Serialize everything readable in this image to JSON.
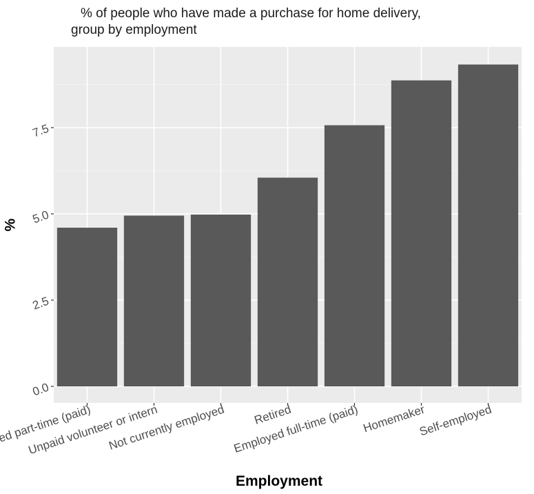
{
  "chart_data": {
    "type": "bar",
    "title": "% of people who have made a purchase for home delivery,",
    "subtitle": "group by employment",
    "xlabel": "Employment",
    "ylabel": "%",
    "categories": [
      "Employed part-time (paid)",
      "Unpaid volunteer or intern",
      "Not currently employed",
      "Retired",
      "Employed full-time (paid)",
      "Homemaker",
      "Self-employed"
    ],
    "values": [
      4.6,
      4.95,
      4.98,
      6.05,
      7.57,
      8.87,
      9.33
    ],
    "ylim": [
      0,
      9.8
    ],
    "yticks": [
      0.0,
      2.5,
      5.0,
      7.5
    ],
    "ytick_labels": [
      "0.0",
      "2.5",
      "5.0",
      "7.5"
    ],
    "grid": true,
    "colors": {
      "bar": "#595959",
      "panel": "#ebebeb",
      "grid_major": "#ffffff",
      "grid_minor": "#f5f5f5",
      "tick_text": "#4d4d4d"
    }
  }
}
